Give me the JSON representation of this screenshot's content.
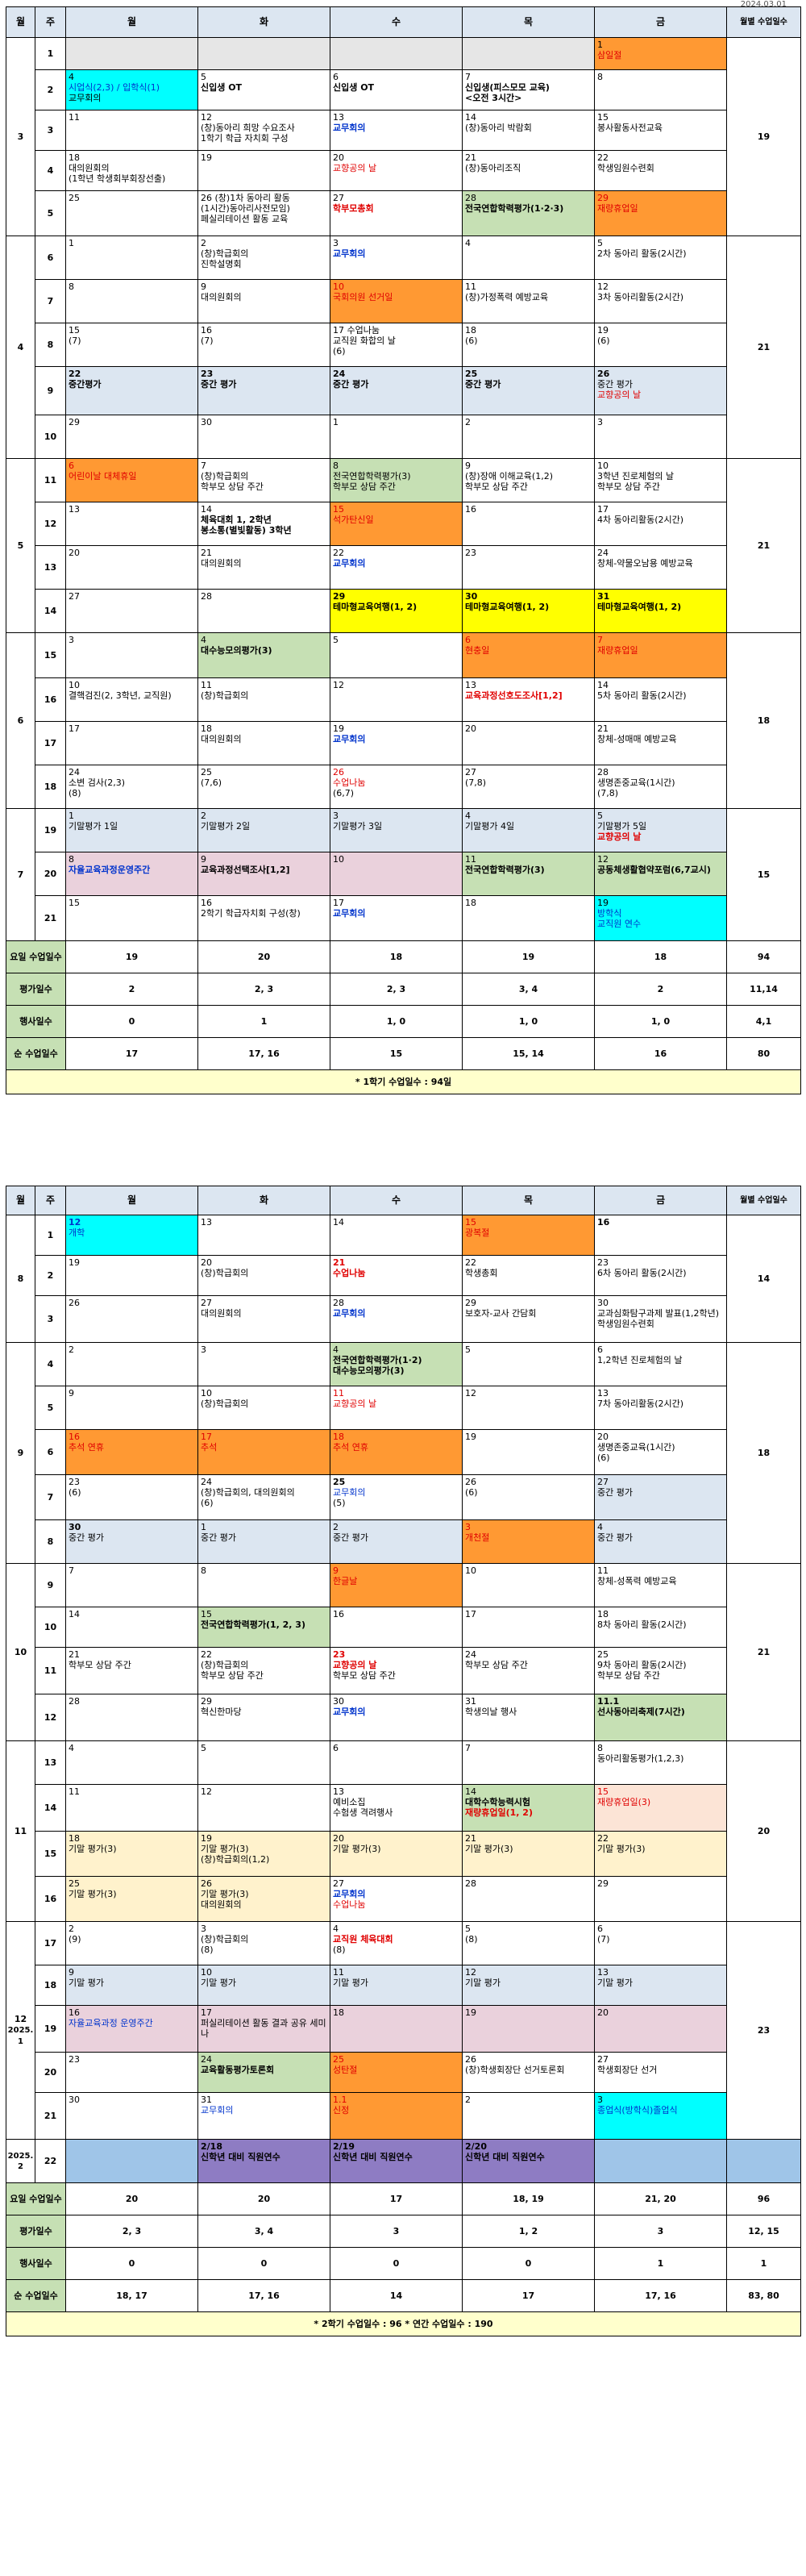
{
  "top_note": "2024.03.01",
  "headers": {
    "month": "월",
    "week": "주",
    "mon": "월",
    "tue": "화",
    "wed": "수",
    "thu": "목",
    "fri": "금",
    "days": "월별 수업일수"
  },
  "sem1": {
    "m3": "3",
    "m4": "4",
    "m5": "5",
    "m6": "6",
    "m7": "7",
    "d3": "19",
    "d4": "21",
    "d5": "21",
    "d6": "18",
    "d7": "15",
    "w": [
      "1",
      "2",
      "3",
      "4",
      "5",
      "6",
      "7",
      "8",
      "9",
      "10",
      "11",
      "12",
      "13",
      "14",
      "15",
      "16",
      "17",
      "18",
      "19",
      "20",
      "21"
    ],
    "c": {
      "w1fri": [
        "1",
        "삼일절"
      ],
      "w2mon": [
        "4",
        "시업식(2,3) / 입학식(1)",
        "교무회의"
      ],
      "w2tue": [
        "5",
        "신입생 OT"
      ],
      "w2wed": [
        "6",
        "신입생 OT"
      ],
      "w2thu": [
        "7",
        "신입생(피스모모 교육)",
        "<오전 3시간>"
      ],
      "w2fri": [
        "8"
      ],
      "w3mon": [
        "11"
      ],
      "w3tue": [
        "12",
        "(창)동아리 희망 수요조사",
        "1학기 학급 자치회 구성"
      ],
      "w3wed": [
        "13",
        "교무회의"
      ],
      "w3thu": [
        "14",
        "(창)동아리 박람회"
      ],
      "w3fri": [
        "15",
        "봉사활동사전교육"
      ],
      "w4mon": [
        "18",
        "대의원회의",
        "(1학년 학생회부회장선출)"
      ],
      "w4tue": [
        "19"
      ],
      "w4wed": [
        "20",
        "교향공의 날"
      ],
      "w4thu": [
        "21",
        "(창)동아리조직"
      ],
      "w4fri": [
        "22",
        "학생임원수련회"
      ],
      "w5mon": [
        "25"
      ],
      "w5tue": [
        "26 (창)1차 동아리 활동",
        "(1시간)동아리사전모임)",
        "페실리테이션 활동 교육"
      ],
      "w5wed": [
        "27",
        "학부모총회"
      ],
      "w5thu": [
        "28",
        "전국연합학력평가(1·2·3)"
      ],
      "w5fri": [
        "29",
        "재량휴업일"
      ],
      "w6mon": [
        "1"
      ],
      "w6tue": [
        "2",
        "(창)학급회의",
        "진학설명회"
      ],
      "w6wed": [
        "3",
        "교무회의"
      ],
      "w6thu": [
        "4"
      ],
      "w6fri": [
        "5",
        "2차 동아리 활동(2시간)"
      ],
      "w7mon": [
        "8"
      ],
      "w7tue": [
        "9",
        "대의원회의"
      ],
      "w7wed": [
        "10",
        "국회의원 선거일"
      ],
      "w7thu": [
        "11",
        "(창)가정폭력 예방교육"
      ],
      "w7fri": [
        "12",
        "3차 동아리활동(2시간)"
      ],
      "w8mon": [
        "15",
        "(7)"
      ],
      "w8tue": [
        "16",
        "(7)"
      ],
      "w8wed": [
        "17 수업나눔",
        "교직원 화합의 날",
        "(6)"
      ],
      "w8thu": [
        "18",
        "(6)"
      ],
      "w8fri": [
        "19",
        "(6)"
      ],
      "w9mon": [
        "22",
        "중간평가"
      ],
      "w9tue": [
        "23",
        "중간 평가"
      ],
      "w9wed": [
        "24",
        "중간 평가"
      ],
      "w9thu": [
        "25",
        "중간 평가"
      ],
      "w9fri": [
        "26",
        "중간 평가",
        "교향공의 날"
      ],
      "w10mon": [
        "29"
      ],
      "w10tue": [
        "30"
      ],
      "w10wed": [
        "1"
      ],
      "w10thu": [
        "2"
      ],
      "w10fri": [
        "3"
      ],
      "w11mon": [
        "6",
        "어린이날 대체휴일"
      ],
      "w11tue": [
        "7",
        "(창)학급회의",
        "학부모 상담 주간"
      ],
      "w11wed": [
        "8",
        "전국연합학력평가(3)",
        "학부모 상담 주간"
      ],
      "w11thu": [
        "9",
        "(창)장애 이해교육(1,2)",
        "학부모 상담 주간"
      ],
      "w11fri": [
        "10",
        "3학년 진로체험의 날",
        "학부모 상담 주간"
      ],
      "w12mon": [
        "13"
      ],
      "w12tue": [
        "14",
        "체육대회 1, 2학년",
        "봉소통(별빛활동) 3학년"
      ],
      "w12wed": [
        "15",
        "석가탄신일"
      ],
      "w12thu": [
        "16"
      ],
      "w12fri": [
        "17",
        "4차 동아리활동(2시간)"
      ],
      "w13mon": [
        "20"
      ],
      "w13tue": [
        "21",
        "대의원회의"
      ],
      "w13wed": [
        "22",
        "교무회의"
      ],
      "w13thu": [
        "23"
      ],
      "w13fri": [
        "24",
        "창체-약물오남용 예방교육"
      ],
      "w14mon": [
        "27"
      ],
      "w14tue": [
        "28"
      ],
      "w14wed": [
        "29",
        "테마형교육여행(1, 2)"
      ],
      "w14thu": [
        "30",
        "테마형교육여행(1, 2)"
      ],
      "w14fri": [
        "31",
        "테마형교육여행(1, 2)"
      ],
      "w15mon": [
        "3"
      ],
      "w15tue": [
        "4",
        "대수능모의평가(3)"
      ],
      "w15wed": [
        "5"
      ],
      "w15thu": [
        "6",
        "현충일"
      ],
      "w15fri": [
        "7",
        "재량휴업일"
      ],
      "w16mon": [
        "10",
        "결핵검진(2, 3학년, 교직원)"
      ],
      "w16tue": [
        "11",
        "(창)학급회의"
      ],
      "w16wed": [
        "12"
      ],
      "w16thu": [
        "13",
        "교육과정선호도조사[1,2]"
      ],
      "w16fri": [
        "14",
        "5차 동아리 활동(2시간)"
      ],
      "w17mon": [
        "17"
      ],
      "w17tue": [
        "18",
        "대의원회의"
      ],
      "w17wed": [
        "19",
        "교무회의"
      ],
      "w17thu": [
        "20"
      ],
      "w17fri": [
        "21",
        "창체-성매매 예방교육"
      ],
      "w18mon": [
        "24",
        "소변 검사(2,3)",
        "(8)"
      ],
      "w18tue": [
        "25",
        "(7,6)"
      ],
      "w18wed": [
        "26",
        "수업나눔",
        "(6,7)"
      ],
      "w18thu": [
        "27",
        "(7,8)"
      ],
      "w18fri": [
        "28",
        "생명존중교육(1시간)",
        "(7,8)"
      ],
      "w19mon": [
        "1",
        "기말평가 1일"
      ],
      "w19tue": [
        "2",
        "기말평가 2일"
      ],
      "w19wed": [
        "3",
        "기말평가 3일"
      ],
      "w19thu": [
        "4",
        "기말평가 4일"
      ],
      "w19fri": [
        "5",
        "기말평가 5일",
        "교향공의 날"
      ],
      "w20mon": [
        "8",
        "자율교육과정운영주간"
      ],
      "w20tue": [
        "9",
        "교육과정선택조사[1,2]"
      ],
      "w20wed": [
        "10"
      ],
      "w20thu": [
        "11",
        "전국연합학력평가(3)"
      ],
      "w20fri": [
        "12",
        "공동체생활협약포럼(6,7교시)"
      ],
      "w21mon": [
        "15"
      ],
      "w21tue": [
        "16",
        "2학기 학급자치회 구성(창)"
      ],
      "w21wed": [
        "17",
        "교무회의"
      ],
      "w21thu": [
        "18"
      ],
      "w21fri": [
        "19",
        "방학식",
        "교직원 연수"
      ]
    },
    "summary": {
      "l1": "요일 수업일수",
      "l2": "평가일수",
      "l3": "행사일수",
      "l4": "순 수업일수",
      "r1": [
        "19",
        "20",
        "18",
        "19",
        "18",
        "94"
      ],
      "r2": [
        "2",
        "2, 3",
        "2, 3",
        "3, 4",
        "2",
        "11,14"
      ],
      "r3": [
        "0",
        "1",
        "1, 0",
        "1, 0",
        "1, 0",
        "4,1"
      ],
      "r4": [
        "17",
        "17, 16",
        "15",
        "15, 14",
        "16",
        "80"
      ]
    },
    "note": "* 1학기 수업일수 : 94일"
  },
  "sem2": {
    "m8": "8",
    "m9": "9",
    "m10": "10",
    "m11": "11",
    "m12": "12",
    "m12b": "2025. 1",
    "m2": "2025. 2",
    "d8": "14",
    "d9": "18",
    "d10": "21",
    "d11": "20",
    "d12": "23",
    "w": [
      "1",
      "2",
      "3",
      "4",
      "5",
      "6",
      "7",
      "8",
      "9",
      "10",
      "11",
      "12",
      "13",
      "14",
      "15",
      "16",
      "17",
      "18",
      "19",
      "20",
      "21",
      "22"
    ],
    "c": {
      "a1mon": [
        "12",
        "개학"
      ],
      "a1tue": [
        "13"
      ],
      "a1wed": [
        "14"
      ],
      "a1thu": [
        "15",
        "광복절"
      ],
      "a1fri": [
        "16"
      ],
      "a2mon": [
        "19"
      ],
      "a2tue": [
        "20",
        "(창)학급회의"
      ],
      "a2wed": [
        "21",
        "수업나눔"
      ],
      "a2thu": [
        "22",
        "학생총회"
      ],
      "a2fri": [
        "23",
        "6차 동아리 활동(2시간)"
      ],
      "a3mon": [
        "26"
      ],
      "a3tue": [
        "27",
        "대의원회의"
      ],
      "a3wed": [
        "28",
        "교무회의"
      ],
      "a3thu": [
        "29",
        "보호자-교사 간담회"
      ],
      "a3fri": [
        "30",
        "교과심화탐구과제 발표(1,2학년)",
        "학생임원수련회"
      ],
      "a4mon": [
        "2"
      ],
      "a4tue": [
        "3"
      ],
      "a4wed": [
        "4",
        "전국연합학력평가(1·2)",
        "대수능모의평가(3)"
      ],
      "a4thu": [
        "5"
      ],
      "a4fri": [
        "6",
        "1,2학년 진로체험의 날"
      ],
      "a5mon": [
        "9"
      ],
      "a5tue": [
        "10",
        "(창)학급회의"
      ],
      "a5wed": [
        "11",
        "교향공의 날"
      ],
      "a5thu": [
        "12"
      ],
      "a5fri": [
        "13",
        "7차 동아리활동(2시간)"
      ],
      "a6mon": [
        "16",
        "추석 연휴"
      ],
      "a6tue": [
        "17",
        "추석"
      ],
      "a6wed": [
        "18",
        "추석 연휴"
      ],
      "a6thu": [
        "19"
      ],
      "a6fri": [
        "20",
        "생명존중교육(1시간)",
        "(6)"
      ],
      "a7mon": [
        "23",
        "(6)"
      ],
      "a7tue": [
        "24",
        "(창)학급회의, 대의원회의",
        "(6)"
      ],
      "a7wed": [
        "25",
        "교무회의",
        "(5)"
      ],
      "a7thu": [
        "26",
        "(6)"
      ],
      "a7fri": [
        "27",
        "중간 평가"
      ],
      "a8mon": [
        "30",
        "중간 평가"
      ],
      "a8tue": [
        "1",
        "중간 평가"
      ],
      "a8wed": [
        "2",
        "중간 평가"
      ],
      "a8thu": [
        "3",
        "개천절"
      ],
      "a8fri": [
        "4",
        "중간 평가"
      ],
      "a9mon": [
        "7"
      ],
      "a9tue": [
        "8"
      ],
      "a9wed": [
        "9",
        "한글날"
      ],
      "a9thu": [
        "10"
      ],
      "a9fri": [
        "11",
        "창체-성폭력 예방교육"
      ],
      "a10mon": [
        "14"
      ],
      "a10tue": [
        "15",
        "전국연합학력평가(1, 2, 3)"
      ],
      "a10wed": [
        "16"
      ],
      "a10thu": [
        "17"
      ],
      "a10fri": [
        "18",
        "8차 동아리 활동(2시간)"
      ],
      "a11mon": [
        "21",
        "학부모 상담 주간"
      ],
      "a11tue": [
        "22",
        "(창)학급회의",
        "학부모 상담 주간"
      ],
      "a11wed": [
        "23",
        "교향공의 날",
        "학부모 상담 주간"
      ],
      "a11thu": [
        "24",
        "학부모 상담 주간"
      ],
      "a11fri": [
        "25",
        "9차 동아리 활동(2시간)",
        "학부모 상담 주간"
      ],
      "a12mon": [
        "28"
      ],
      "a12tue": [
        "29",
        "혁신한마당"
      ],
      "a12wed": [
        "30",
        "교무회의"
      ],
      "a12thu": [
        "31",
        "학생의날 행사"
      ],
      "a12fri": [
        "11.1",
        "선사동아리축제(7시간)"
      ],
      "a13mon": [
        "4"
      ],
      "a13tue": [
        "5"
      ],
      "a13wed": [
        "6"
      ],
      "a13thu": [
        "7"
      ],
      "a13fri": [
        "8",
        "동아리활동평가(1,2,3)"
      ],
      "a14mon": [
        "11"
      ],
      "a14tue": [
        "12"
      ],
      "a14wed": [
        "13",
        "예비소집",
        "수험생 격려행사"
      ],
      "a14thu": [
        "14",
        "대학수학능력시험",
        "재량휴업일(1, 2)"
      ],
      "a14fri": [
        "15",
        "재량휴업일(3)"
      ],
      "a15mon": [
        "18",
        "기말 평가(3)"
      ],
      "a15tue": [
        "19",
        "기말 평가(3)",
        "(창)학급회의(1,2)"
      ],
      "a15wed": [
        "20",
        "기말 평가(3)"
      ],
      "a15thu": [
        "21",
        "기말 평가(3)"
      ],
      "a15fri": [
        "22",
        "기말 평가(3)"
      ],
      "a16mon": [
        "25",
        "기말 평가(3)"
      ],
      "a16tue": [
        "26",
        "기말 평가(3)",
        "대의원회의"
      ],
      "a16wed": [
        "27",
        "교무회의",
        "수업나눔"
      ],
      "a16thu": [
        "28"
      ],
      "a16fri": [
        "29"
      ],
      "a17mon": [
        "2",
        "(9)"
      ],
      "a17tue": [
        "3",
        "(창)학급회의",
        "(8)"
      ],
      "a17wed": [
        "4",
        "교직원 체육대회",
        "(8)"
      ],
      "a17thu": [
        "5",
        "(8)"
      ],
      "a17fri": [
        "6",
        "(7)"
      ],
      "a18mon": [
        "9",
        "기말 평가"
      ],
      "a18tue": [
        "10",
        "기말 평가"
      ],
      "a18wed": [
        "11",
        "기말 평가"
      ],
      "a18thu": [
        "12",
        "기말 평가"
      ],
      "a18fri": [
        "13",
        "기말 평가"
      ],
      "a19mon": [
        "16",
        "자율교육과정 운영주간"
      ],
      "a19tue": [
        "17",
        "퍼실리테이션 활동 결과 공유 세미나"
      ],
      "a19wed": [
        "18"
      ],
      "a19thu": [
        "19"
      ],
      "a19fri": [
        "20"
      ],
      "a20mon": [
        "23"
      ],
      "a20tue": [
        "24",
        "교육활동평가토론회"
      ],
      "a20wed": [
        "25",
        "성탄절"
      ],
      "a20thu": [
        "26",
        "(창)학생회장단 선거토론회"
      ],
      "a20fri": [
        "27",
        "학생회장단 선거"
      ],
      "a21mon": [
        "30"
      ],
      "a21tue": [
        "31",
        "교무회의"
      ],
      "a21wed": [
        "1.1",
        "신정"
      ],
      "a21thu": [
        "2"
      ],
      "a21fri": [
        "3",
        "종업식(방학식)졸업식"
      ],
      "a22mon": [
        ""
      ],
      "a22tue": [
        "2/18",
        "신학년 대비 직원연수"
      ],
      "a22wed": [
        "2/19",
        "신학년 대비 직원연수"
      ],
      "a22thu": [
        "2/20",
        "신학년 대비 직원연수"
      ],
      "a22fri": [
        ""
      ]
    },
    "summary": {
      "l1": "요일 수업일수",
      "l2": "평가일수",
      "l3": "행사일수",
      "l4": "순 수업일수",
      "r1": [
        "20",
        "20",
        "17",
        "18, 19",
        "21, 20",
        "96"
      ],
      "r2": [
        "2, 3",
        "3, 4",
        "3",
        "1, 2",
        "3",
        "12, 15"
      ],
      "r3": [
        "0",
        "0",
        "0",
        "0",
        "1",
        "1"
      ],
      "r4": [
        "18, 17",
        "17, 16",
        "14",
        "17",
        "17, 16",
        "83, 80"
      ]
    },
    "note": "* 2학기 수업일수 : 96     * 연간 수업일수 : 190"
  },
  "colors": {
    "orange": "#ff9933",
    "cyan": "#00ffff",
    "green": "#c6e0b4",
    "yellow": "#ffff00",
    "header": "#dce6f1",
    "red": "#e00000",
    "blue": "#0033cc"
  }
}
